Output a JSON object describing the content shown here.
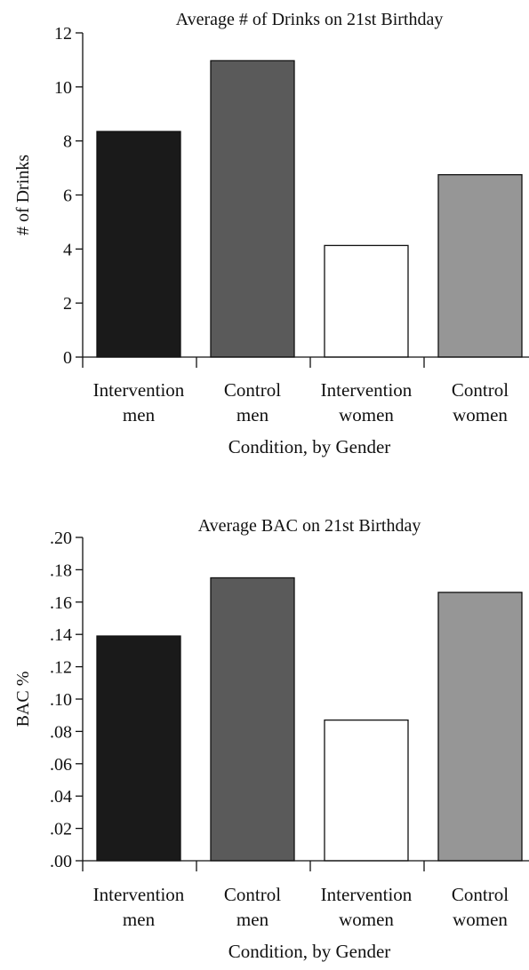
{
  "chart_data": [
    {
      "type": "bar",
      "title": "Average # of Drinks on 21st Birthday",
      "xlabel": "Condition, by Gender",
      "ylabel": "# of Drinks",
      "ylim": [
        0,
        12
      ],
      "yticks": [
        "0",
        "2",
        "4",
        "6",
        "8",
        "10",
        "12"
      ],
      "categories": [
        [
          "Intervention",
          "men"
        ],
        [
          "Control",
          "men"
        ],
        [
          "Intervention",
          "women"
        ],
        [
          "Control",
          "women"
        ]
      ],
      "values": [
        8.35,
        10.97,
        4.13,
        6.75
      ],
      "colors": [
        "#1a1a1a",
        "#5a5a5a",
        "#ffffff",
        "#969696"
      ],
      "grid": false,
      "legend": "none"
    },
    {
      "type": "bar",
      "title": "Average BAC on 21st Birthday",
      "xlabel": "Condition, by Gender",
      "ylabel": "BAC %",
      "ylim": [
        0,
        0.2
      ],
      "yticks": [
        ".00",
        ".02",
        ".04",
        ".06",
        ".08",
        ".10",
        ".12",
        ".14",
        ".16",
        ".18",
        ".20"
      ],
      "categories": [
        [
          "Intervention",
          "men"
        ],
        [
          "Control",
          "men"
        ],
        [
          "Intervention",
          "women"
        ],
        [
          "Control",
          "women"
        ]
      ],
      "values": [
        0.139,
        0.175,
        0.087,
        0.166
      ],
      "colors": [
        "#1a1a1a",
        "#5a5a5a",
        "#ffffff",
        "#969696"
      ],
      "grid": false,
      "legend": "none"
    }
  ]
}
